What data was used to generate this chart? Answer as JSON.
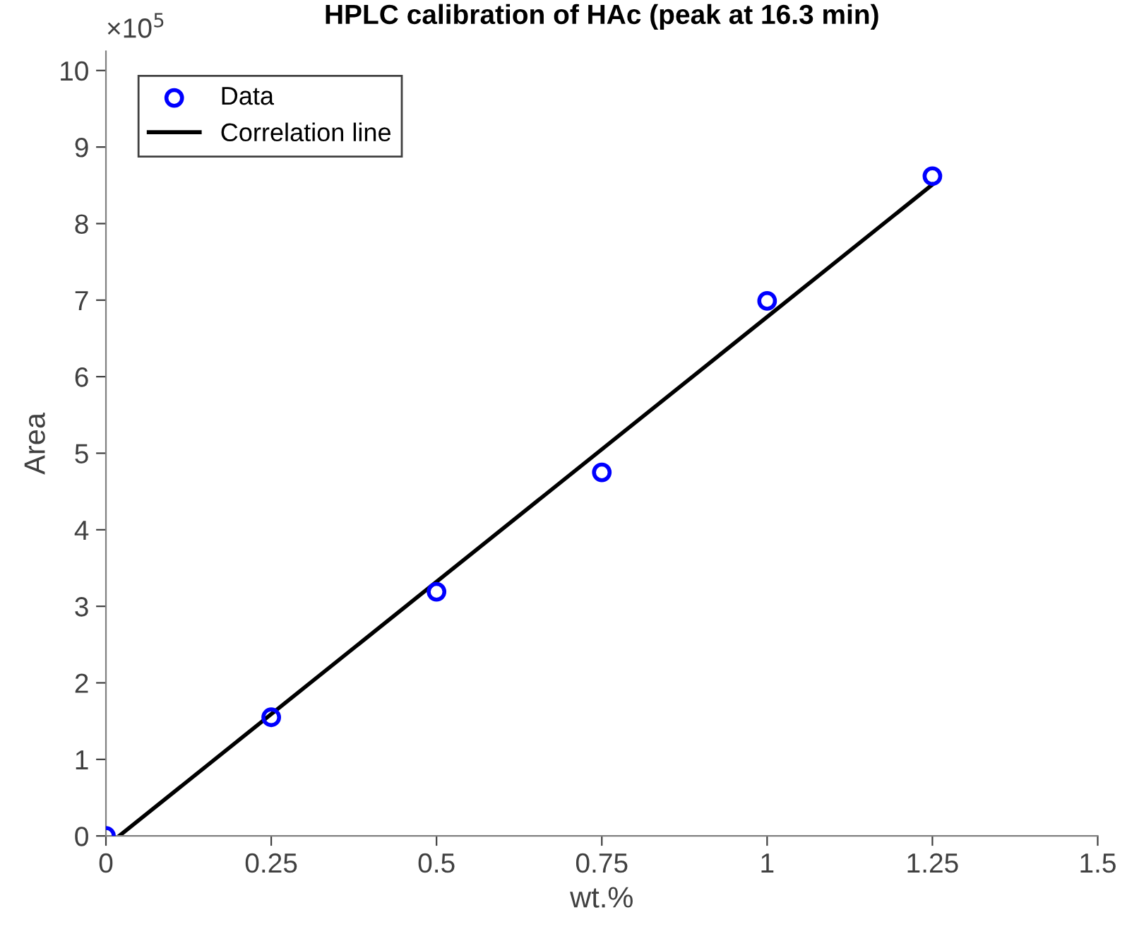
{
  "chart_data": {
    "type": "scatter",
    "title": "HPLC calibration of HAc (peak at 16.3 min)",
    "xlabel": "wt.%",
    "ylabel": "Area",
    "annotations": [
      "×10$^{5}$"
    ],
    "x": [
      0,
      0.25,
      0.5,
      0.75,
      1.0,
      1.25
    ],
    "series": [
      {
        "name": "Data",
        "color": "#0000ff",
        "marker": "circle",
        "values": [
          0,
          1.55,
          3.19,
          4.75,
          6.99,
          8.62
        ]
      },
      {
        "name": "Correlation line",
        "type": "line",
        "color": "#000000",
        "marker": "none",
        "line_style": "solid",
        "x": [
          0.02,
          1.25
        ],
        "values": [
          0,
          8.51
        ]
      }
    ],
    "xlim": [
      0,
      1.5
    ],
    "xticks": [
      0,
      0.25,
      0.5,
      0.75,
      1,
      1.25,
      1.5
    ],
    "ylim": [
      0,
      10.25
    ],
    "yticks": [
      0,
      1,
      2,
      3,
      4,
      5,
      6,
      7,
      8,
      9,
      10
    ],
    "grid": false,
    "legend": "top left"
  }
}
